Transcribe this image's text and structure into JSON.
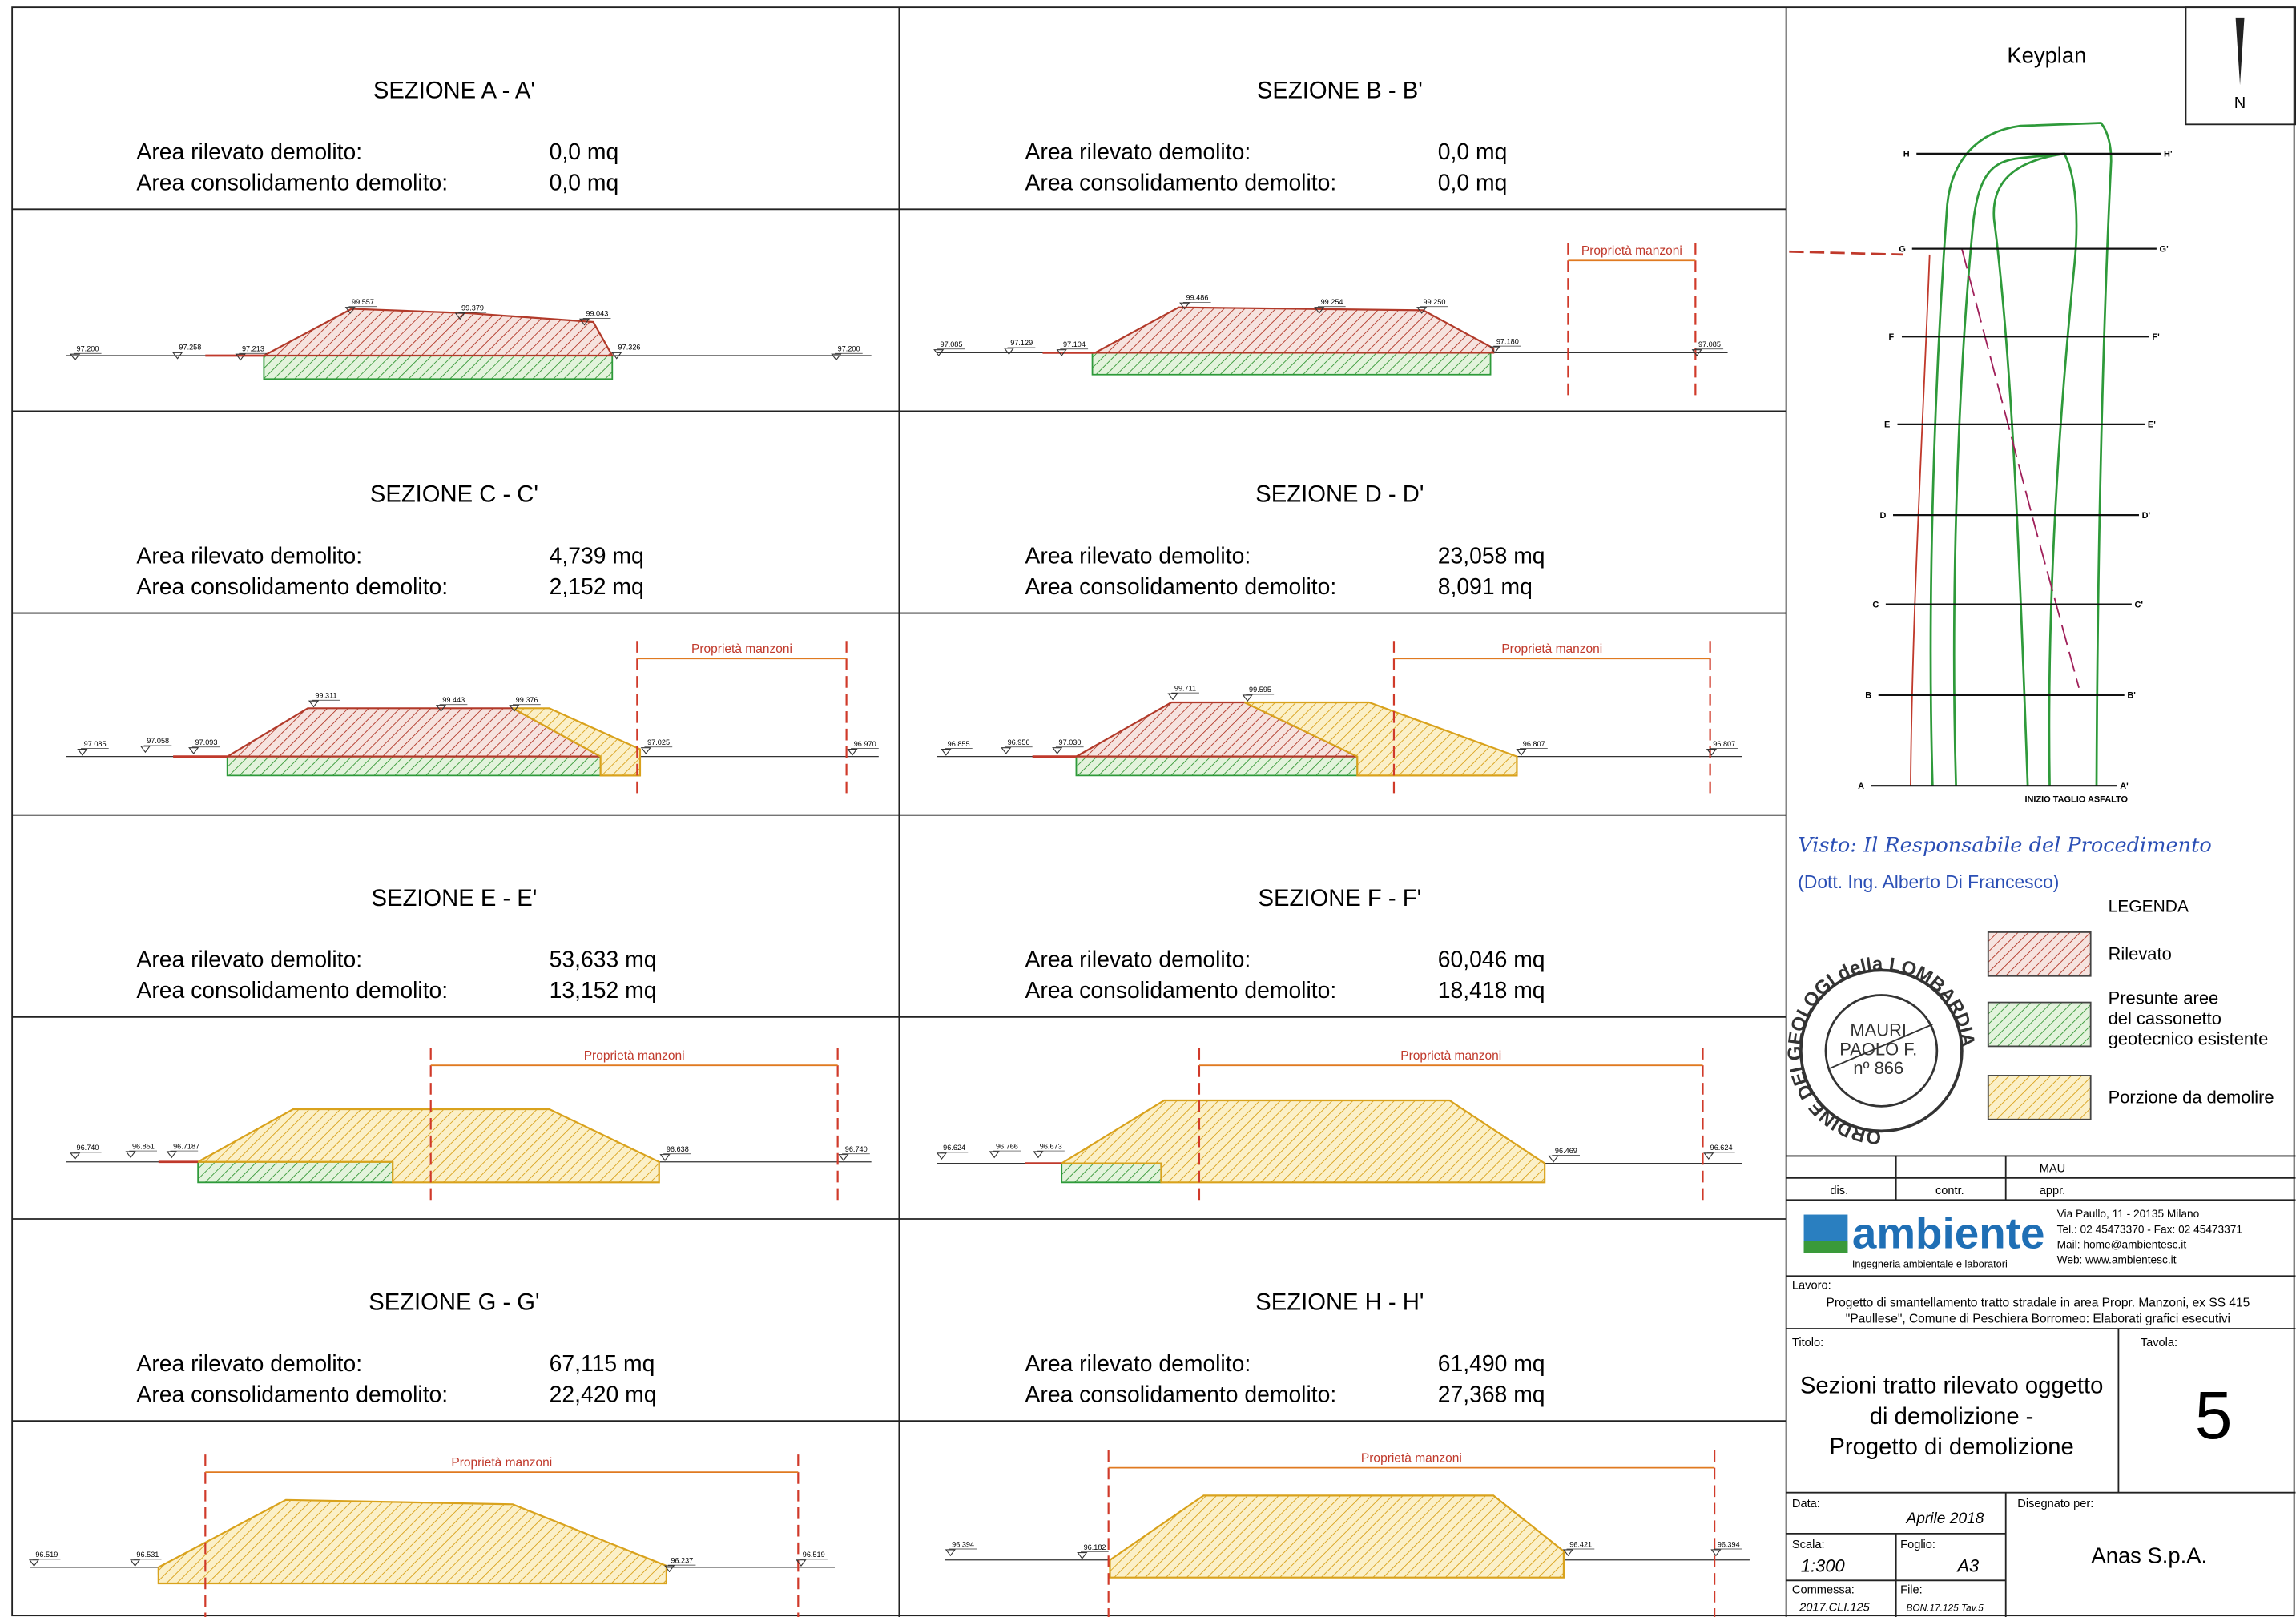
{
  "sections": [
    {
      "title": "SEZIONE A - A'",
      "rows": [
        {
          "label": "Area rilevato demolito:",
          "value": "0,0 mq"
        },
        {
          "label": "Area consolidamento demolito:",
          "value": "0,0 mq"
        }
      ],
      "elevations": [
        "97.200",
        "97.258",
        "97.213",
        "99.557",
        "99.379",
        "99.043",
        "97.326",
        "97.200"
      ]
    },
    {
      "title": "SEZIONE B - B'",
      "rows": [
        {
          "label": "Area rilevato demolito:",
          "value": "0,0 mq"
        },
        {
          "label": "Area consolidamento demolito:",
          "value": "0,0 mq"
        }
      ],
      "property": "Proprietà manzoni",
      "elevations": [
        "97.085",
        "97.129",
        "97.104",
        "99.486",
        "99.254",
        "99.250",
        "97.180",
        "97.085"
      ]
    },
    {
      "title": "SEZIONE C - C'",
      "rows": [
        {
          "label": "Area rilevato demolito:",
          "value": "4,739 mq"
        },
        {
          "label": "Area consolidamento demolito:",
          "value": "2,152 mq"
        }
      ],
      "property": "Proprietà manzoni",
      "elevations": [
        "97.085",
        "97.058",
        "97.093",
        "99.311",
        "99.443",
        "99.376",
        "97.025",
        "96.970"
      ]
    },
    {
      "title": "SEZIONE D - D'",
      "rows": [
        {
          "label": "Area rilevato demolito:",
          "value": "23,058 mq"
        },
        {
          "label": "Area consolidamento demolito:",
          "value": "8,091 mq"
        }
      ],
      "property": "Proprietà manzoni",
      "elevations": [
        "96.855",
        "96.956",
        "97.030",
        "99.711",
        "99.595",
        "96.807",
        "96.807"
      ]
    },
    {
      "title": "SEZIONE E - E'",
      "rows": [
        {
          "label": "Area rilevato demolito:",
          "value": "53,633 mq"
        },
        {
          "label": "Area consolidamento demolito:",
          "value": "13,152 mq"
        }
      ],
      "property": "Proprietà manzoni",
      "elevations": [
        "96.740",
        "96.851",
        "96.7187",
        "96.638",
        "96.740"
      ]
    },
    {
      "title": "SEZIONE F - F'",
      "rows": [
        {
          "label": "Area rilevato demolito:",
          "value": "60,046 mq"
        },
        {
          "label": "Area consolidamento demolito:",
          "value": "18,418 mq"
        }
      ],
      "property": "Proprietà manzoni",
      "elevations": [
        "96.624",
        "96.766",
        "96.673",
        "96.469",
        "96.624"
      ]
    },
    {
      "title": "SEZIONE G - G'",
      "rows": [
        {
          "label": "Area rilevato demolito:",
          "value": "67,115 mq"
        },
        {
          "label": "Area consolidamento demolito:",
          "value": "22,420 mq"
        }
      ],
      "property": "Proprietà manzoni",
      "elevations": [
        "96.519",
        "96.531",
        "96.237",
        "96.519"
      ]
    },
    {
      "title": "SEZIONE H - H'",
      "rows": [
        {
          "label": "Area rilevato demolito:",
          "value": "61,490 mq"
        },
        {
          "label": "Area consolidamento demolito:",
          "value": "27,368 mq"
        }
      ],
      "property": "Proprietà manzoni",
      "elevations": [
        "96.394",
        "96.182",
        "96.421",
        "96.394"
      ]
    }
  ],
  "keyplan": {
    "title": "Keyplan",
    "north": "N",
    "left_labels": [
      "H",
      "G",
      "F",
      "E",
      "D",
      "C",
      "B",
      "A"
    ],
    "right_labels": [
      "H'",
      "G'",
      "F'",
      "E'",
      "D'",
      "C'",
      "B'",
      "A'"
    ],
    "note": "INIZIO TAGLIO ASFALTO"
  },
  "signature": {
    "text": "Visto: Il Responsabile del Procedimento",
    "name": "(Dott. Ing. Alberto Di Francesco)"
  },
  "stamp": {
    "ring": "ORDINE DEI GEOLOGI della LOMBARDIA",
    "lines": [
      "MAURI",
      "PAOLO F.",
      "nº 866"
    ]
  },
  "legend": {
    "title": "LEGENDA",
    "items": [
      [
        "Rilevato"
      ],
      [
        "Presunte aree",
        "del cassonetto",
        "geotecnico esistente"
      ],
      [
        "Porzione da demolire"
      ]
    ]
  },
  "title_block": {
    "appr_name": "MAU",
    "dis": "dis.",
    "contr": "contr.",
    "appr": "appr.",
    "logo": "ambiente",
    "logo_sub": "Ingegneria ambientale e laboratori",
    "address": [
      "Via Paullo, 11 - 20135 Milano",
      "Tel.: 02 45473370 - Fax: 02 45473371",
      "Mail: home@ambientesc.it",
      "Web: www.ambientesc.it"
    ],
    "lavoro_label": "Lavoro:",
    "lavoro": [
      "Progetto di smantellamento tratto stradale in area Propr. Manzoni, ex SS 415",
      "\"Paullese\", Comune di Peschiera Borromeo: Elaborati grafici esecutivi"
    ],
    "titolo_label": "Titolo:",
    "titolo": [
      "Sezioni tratto rilevato oggetto",
      "di demolizione -",
      "Progetto di demolizione"
    ],
    "tavola_label": "Tavola:",
    "tavola": "5",
    "data_label": "Data:",
    "data": "Aprile 2018",
    "disegnato_label": "Disegnato per:",
    "disegnato": "Anas S.p.A.",
    "scala_label": "Scala:",
    "scala": "1:300",
    "foglio_label": "Foglio:",
    "foglio": "A3",
    "commessa_label": "Commessa:",
    "commessa": "2017.CLI.125",
    "file_label": "File:",
    "file": "BON.17.125 Tav.5"
  }
}
